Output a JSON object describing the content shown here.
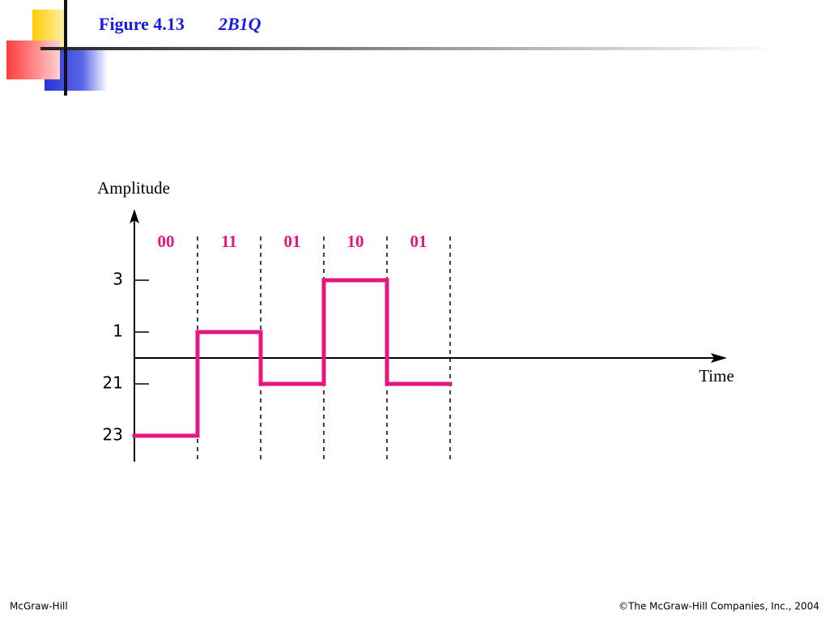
{
  "header": {
    "figure": "Figure 4.13",
    "title": "2B1Q"
  },
  "chart_data": {
    "type": "step",
    "ylabel": "Amplitude",
    "xlabel": "Time",
    "categories": [
      "00",
      "11",
      "01",
      "10",
      "01"
    ],
    "values": [
      -3,
      1,
      -1,
      3,
      -1
    ],
    "color": "#e6157f",
    "ylim": [
      -4,
      5.75
    ],
    "yticks": [
      3,
      1,
      {
        "value": -1,
        "label": "21"
      },
      {
        "value": -3,
        "label": "23"
      }
    ]
  },
  "footer": {
    "left": "McGraw-Hill",
    "right": "©The McGraw-Hill Companies, Inc., 2004"
  }
}
